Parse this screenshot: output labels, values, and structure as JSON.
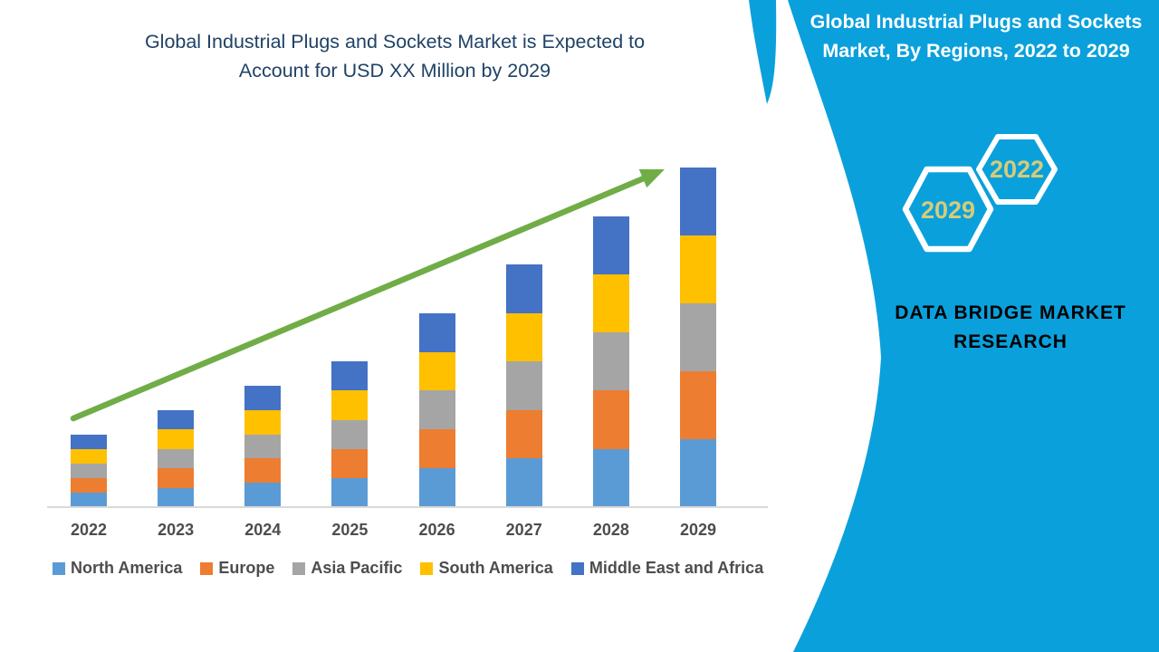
{
  "chart": {
    "title_lines": [
      "Global Industrial Plugs and Sockets Market is Expected to",
      "Account for USD XX Million by 2029"
    ],
    "title_color": "#1F4266"
  },
  "chart_data": {
    "type": "bar",
    "stacked": true,
    "title": "Global Industrial Plugs and Sockets Market is Expected to Account for USD XX Million by 2029",
    "categories": [
      "2022",
      "2023",
      "2024",
      "2025",
      "2026",
      "2027",
      "2028",
      "2029"
    ],
    "series": [
      {
        "name": "North America",
        "color": "#5B9BD5",
        "values": [
          3,
          4,
          5,
          6,
          8,
          10,
          12,
          14
        ]
      },
      {
        "name": "Europe",
        "color": "#ED7D31",
        "values": [
          3,
          4,
          5,
          6,
          8,
          10,
          12,
          14
        ]
      },
      {
        "name": "Asia Pacific",
        "color": "#A5A5A5",
        "values": [
          3,
          4,
          5,
          6,
          8,
          10,
          12,
          14
        ]
      },
      {
        "name": "South America",
        "color": "#FFC000",
        "values": [
          3,
          4,
          5,
          6,
          8,
          10,
          12,
          14
        ]
      },
      {
        "name": "Middle East and Africa",
        "color": "#4472C4",
        "values": [
          3,
          4,
          5,
          6,
          8,
          10,
          12,
          14
        ]
      }
    ],
    "totals": [
      15,
      20,
      25,
      30,
      40,
      50,
      60,
      70
    ],
    "value_axis_labels_visible": false,
    "ylim": [
      0,
      78
    ],
    "grid": false,
    "legend_position": "bottom",
    "trend_arrow_color": "#70AD47",
    "axis_line_color": "#D9D9D9"
  },
  "panel": {
    "background": "#0AA0DC",
    "title": "Global Industrial Plugs and Sockets Market, By Regions, 2022 to 2029",
    "title_lines": [
      "Global Industrial Plugs and Sockets",
      "Market, By Regions, 2022 to 2029"
    ],
    "hexagon_small_label": "2022",
    "hexagon_large_label": "2029",
    "brand": "DATA BRIDGE MARKET RESEARCH",
    "brand_lines": [
      "DATA BRIDGE MARKET",
      "RESEARCH"
    ],
    "accent_color": "#D6CC78"
  }
}
